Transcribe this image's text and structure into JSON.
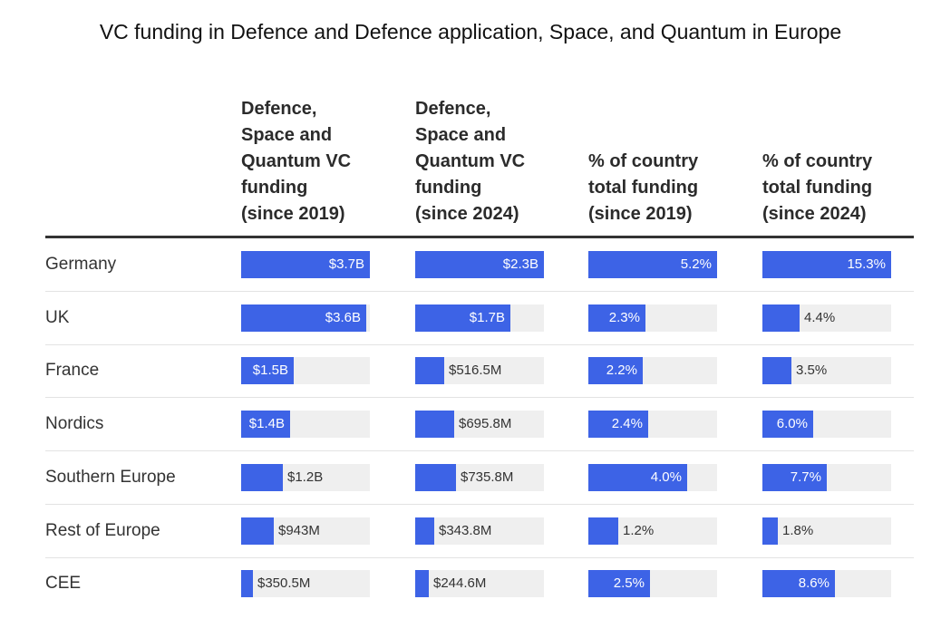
{
  "chart_data": {
    "type": "table",
    "title": "VC funding in Defence and Defence application, Space, and Quantum in Europe",
    "columns": [
      "Defence,\nSpace and\nQuantum VC\nfunding\n(since 2019)",
      "Defence,\nSpace and\nQuantum VC\nfunding\n(since 2024)",
      "% of country\ntotal funding\n(since 2019)",
      "% of country\ntotal funding\n(since 2024)"
    ],
    "rows": [
      {
        "label": "Germany",
        "values": [
          3.7,
          2.3,
          5.2,
          15.3
        ],
        "labels": [
          "$3.7B",
          "$2.3B",
          "5.2%",
          "15.3%"
        ]
      },
      {
        "label": "UK",
        "values": [
          3.6,
          1.7,
          2.3,
          4.4
        ],
        "labels": [
          "$3.6B",
          "$1.7B",
          "2.3%",
          "4.4%"
        ]
      },
      {
        "label": "France",
        "values": [
          1.5,
          0.5165,
          2.2,
          3.5
        ],
        "labels": [
          "$1.5B",
          "$516.5M",
          "2.2%",
          "3.5%"
        ]
      },
      {
        "label": "Nordics",
        "values": [
          1.4,
          0.6958,
          2.4,
          6.0
        ],
        "labels": [
          "$1.4B",
          "$695.8M",
          "2.4%",
          "6.0%"
        ]
      },
      {
        "label": "Southern Europe",
        "values": [
          1.2,
          0.7358,
          4.0,
          7.7
        ],
        "labels": [
          "$1.2B",
          "$735.8M",
          "4.0%",
          "7.7%"
        ]
      },
      {
        "label": "Rest of Europe",
        "values": [
          0.943,
          0.3438,
          1.2,
          1.8
        ],
        "labels": [
          "$943M",
          "$343.8M",
          "1.2%",
          "1.8%"
        ]
      },
      {
        "label": "CEE",
        "values": [
          0.3505,
          0.2446,
          2.5,
          8.6
        ],
        "labels": [
          "$350.5M",
          "$244.6M",
          "2.5%",
          "8.6%"
        ]
      }
    ],
    "column_max": [
      3.7,
      2.3,
      5.2,
      15.3
    ],
    "colors": {
      "bar": "#3d63e6",
      "track": "#efefef"
    }
  }
}
